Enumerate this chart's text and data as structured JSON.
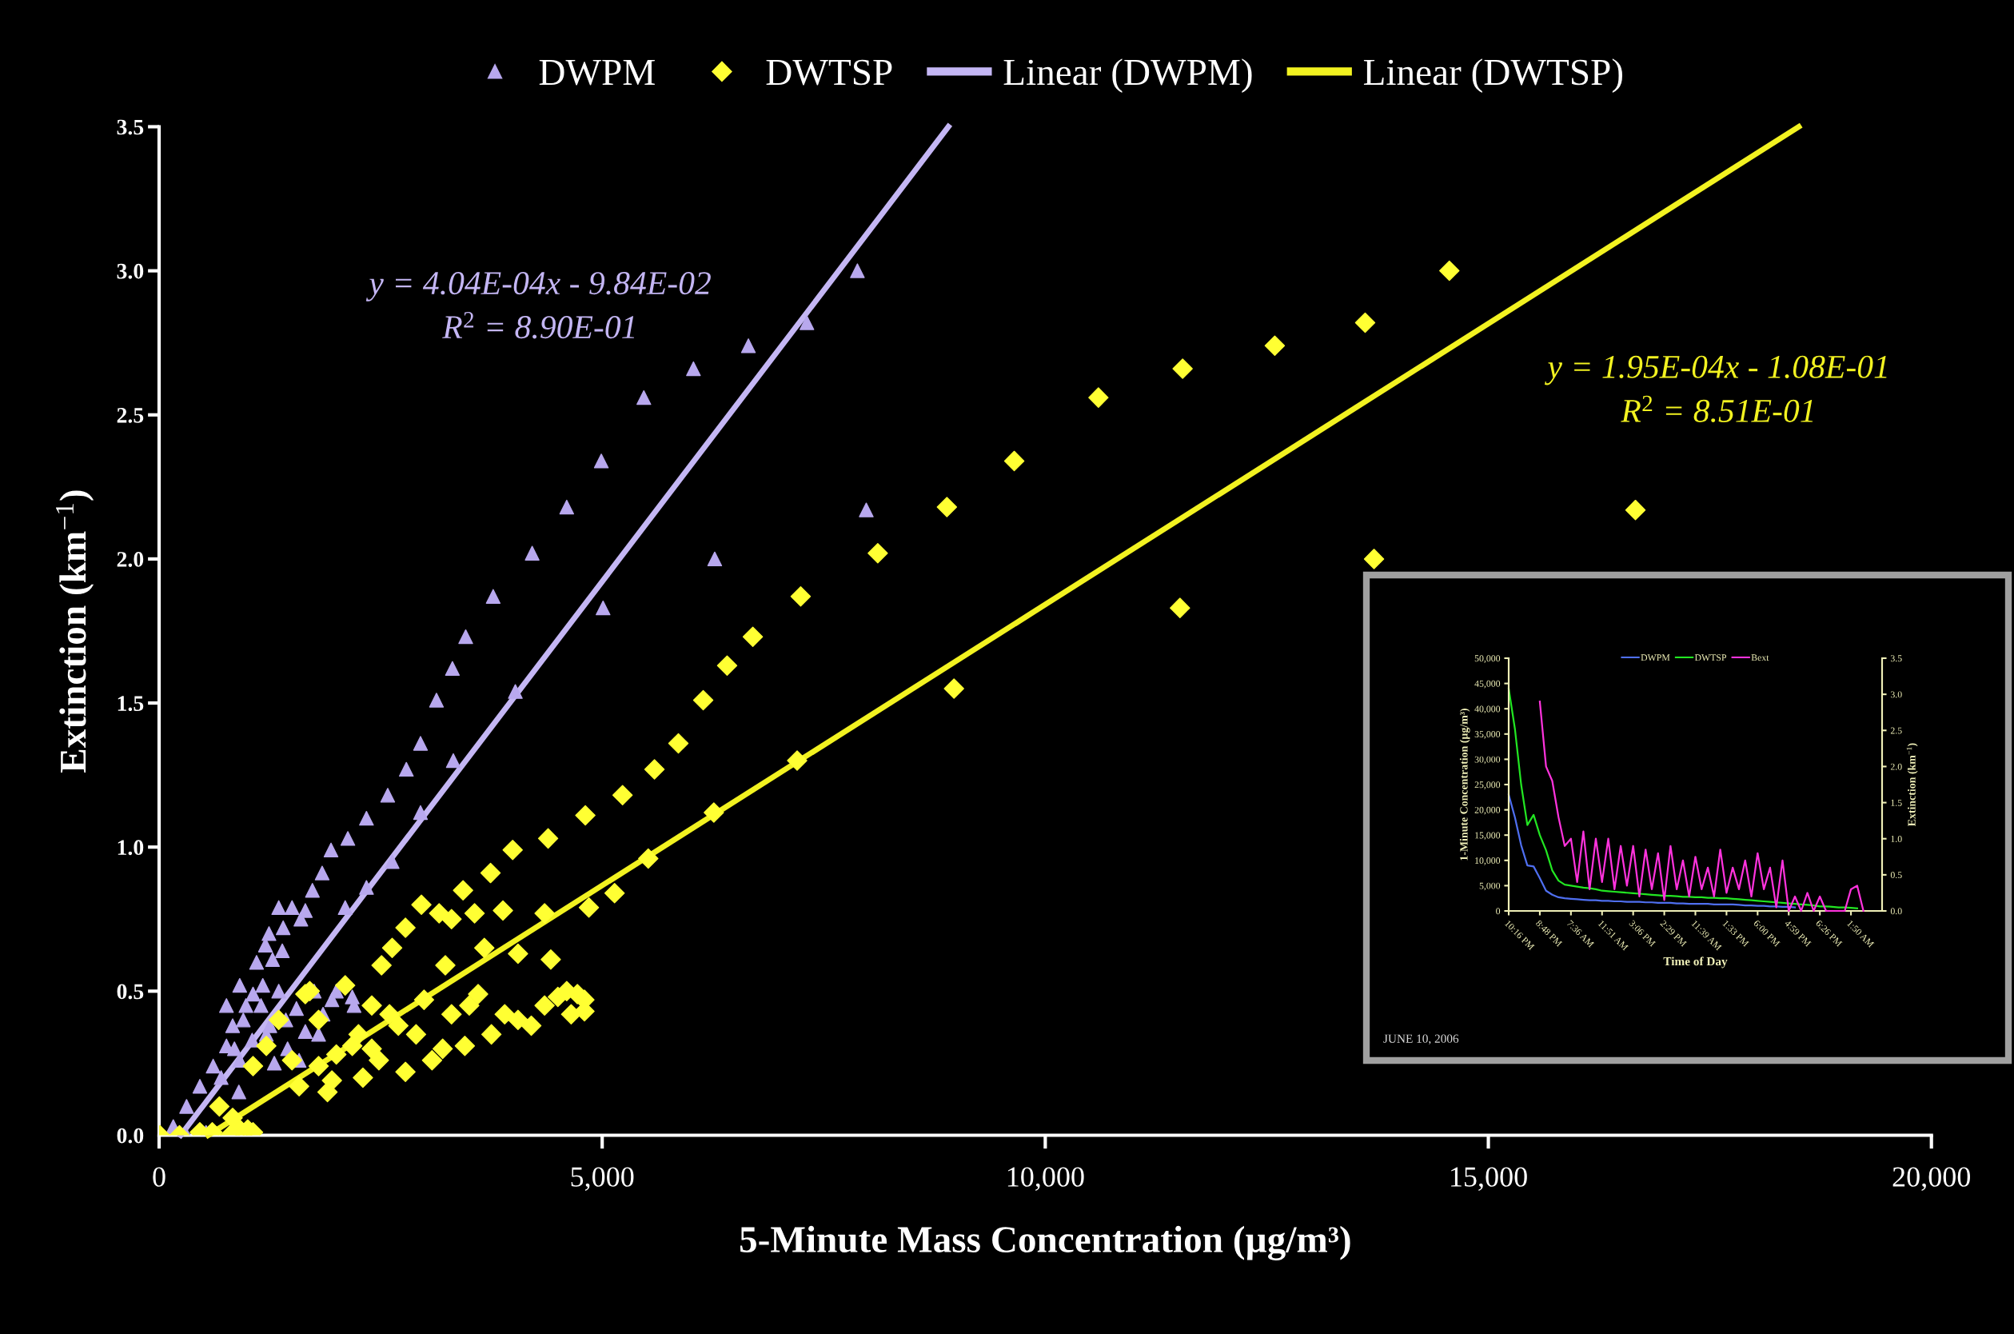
{
  "chart_data": [
    {
      "type": "scatter",
      "xlabel": "5-Minute Mass Concentration (µg/m³)",
      "ylabel": "Extinction (km$^{−1}$)",
      "xlim": [
        0,
        20000
      ],
      "xticks": [
        0,
        {
          "value": 5000,
          "label": "5,000"
        },
        {
          "value": 10000,
          "label": "10,000"
        },
        {
          "value": 15000,
          "label": "15,000"
        },
        {
          "value": 20000,
          "label": "20,000"
        }
      ],
      "ylim": [
        0,
        3.5
      ],
      "yticks": [
        {
          "value": 0,
          "label": "0.0"
        },
        {
          "value": 0.5,
          "label": "0.5"
        },
        {
          "value": 1,
          "label": "1.0"
        },
        {
          "value": 1.5,
          "label": "1.5"
        },
        {
          "value": 2,
          "label": "2.0"
        },
        {
          "value": 2.5,
          "label": "2.5"
        },
        {
          "value": 3,
          "label": "3.0"
        },
        {
          "value": 3.5,
          "label": "3.5"
        }
      ],
      "grid": false,
      "legend": "top",
      "annotations": [
        "y = 4.04E-04x - 9.84E-02\nR$^{2}$ = 8.90E-01",
        "y = 1.95E-04x - 1.08E-01\nR$^{2}$ = 8.51E-01"
      ],
      "series": [
        {
          "name": "DWPM",
          "type": "scatter",
          "marker": "triangle",
          "color": "#b8a8ee",
          "x": [
            7880,
            7310,
            6650,
            6030,
            5470,
            4990,
            4600,
            4210,
            3770,
            3460,
            3310,
            3130,
            2950,
            2790,
            2580,
            2340,
            2130,
            1940,
            1840,
            1730,
            7980,
            6270,
            5010,
            4020,
            3320,
            2950,
            2630,
            2340,
            2100,
            1350,
            1500,
            1650,
            1240,
            1390,
            1280,
            1170,
            910,
            980,
            830,
            760,
            610,
            460,
            310,
            160,
            1060,
            1430,
            1800,
            1950,
            2180,
            1210,
            910,
            1580,
            760,
            310,
            530,
            700,
            850,
            950,
            1050,
            1150,
            1250,
            1350,
            1450,
            1550,
            1650,
            1750,
            1850,
            1100,
            1200,
            1400,
            1600,
            900,
            1300,
            2000,
            2200
          ],
          "values": [
            3.0,
            2.82,
            2.74,
            2.66,
            2.56,
            2.34,
            2.18,
            2.02,
            1.87,
            1.73,
            1.62,
            1.51,
            1.36,
            1.27,
            1.18,
            1.1,
            1.03,
            0.99,
            0.91,
            0.85,
            2.17,
            2.0,
            1.83,
            1.54,
            1.3,
            1.12,
            0.95,
            0.86,
            0.79,
            0.79,
            0.79,
            0.78,
            0.7,
            0.64,
            0.61,
            0.52,
            0.52,
            0.45,
            0.38,
            0.31,
            0.24,
            0.17,
            0.1,
            0.03,
            0.49,
            0.4,
            0.35,
            0.47,
            0.48,
            0.35,
            0.26,
            0.26,
            0.45,
            0.0,
            0.01,
            0.2,
            0.3,
            0.4,
            0.33,
            0.45,
            0.38,
            0.5,
            0.3,
            0.44,
            0.36,
            0.5,
            0.42,
            0.6,
            0.66,
            0.72,
            0.75,
            0.15,
            0.25,
            0.5,
            0.45
          ]
        },
        {
          "name": "DWTSP",
          "type": "scatter",
          "marker": "diamond",
          "color": "#ffff33",
          "x": [
            14560,
            13610,
            12590,
            11550,
            10600,
            9650,
            8890,
            8110,
            16660,
            13710,
            11520,
            8970,
            7240,
            6700,
            6410,
            6140,
            5860,
            5590,
            5230,
            4810,
            4390,
            3990,
            3740,
            3430,
            7200,
            6260,
            5520,
            5140,
            4850,
            4350,
            3880,
            3560,
            3160,
            2960,
            2780,
            2630,
            2510,
            3230,
            3670,
            4050,
            4420,
            4720,
            4650,
            4350,
            4050,
            3750,
            3450,
            3080,
            2780,
            2480,
            2180,
            1800,
            1580,
            1650,
            2100,
            2400,
            2700,
            2990,
            3300,
            3600,
            1350,
            1210,
            1060,
            1500,
            1950,
            2250,
            680,
            830,
            460,
            230,
            1060,
            910,
            10,
            1700,
            1800,
            2000,
            2300,
            2600,
            2900,
            3200,
            3500,
            3900,
            4200,
            4500,
            4600,
            4800,
            4800,
            3300,
            1900,
            2400,
            600,
            800,
            1000
          ],
          "values": [
            3.0,
            2.82,
            2.74,
            2.66,
            2.56,
            2.34,
            2.18,
            2.02,
            2.17,
            2.0,
            1.83,
            1.55,
            1.87,
            1.73,
            1.63,
            1.51,
            1.36,
            1.27,
            1.18,
            1.11,
            1.03,
            0.99,
            0.91,
            0.85,
            1.3,
            1.12,
            0.96,
            0.84,
            0.79,
            0.77,
            0.78,
            0.77,
            0.77,
            0.8,
            0.72,
            0.65,
            0.59,
            0.59,
            0.65,
            0.63,
            0.61,
            0.49,
            0.42,
            0.45,
            0.4,
            0.35,
            0.31,
            0.26,
            0.22,
            0.26,
            0.31,
            0.24,
            0.17,
            0.49,
            0.52,
            0.45,
            0.38,
            0.47,
            0.42,
            0.49,
            0.4,
            0.31,
            0.24,
            0.26,
            0.19,
            0.35,
            0.1,
            0.06,
            0.01,
            0.0,
            0.01,
            0.02,
            0.0,
            0.5,
            0.4,
            0.28,
            0.2,
            0.42,
            0.35,
            0.3,
            0.45,
            0.42,
            0.38,
            0.48,
            0.5,
            0.47,
            0.43,
            0.75,
            0.15,
            0.3,
            0.01,
            0.0,
            0.02
          ]
        },
        {
          "name": "Linear (DWPM)",
          "type": "line",
          "line_style": "solid",
          "color": "#c4b6f4",
          "x": [
            244,
            8907
          ],
          "values": [
            0,
            3.5
          ]
        },
        {
          "name": "Linear (DWTSP)",
          "type": "line",
          "line_style": "solid",
          "color": "#f2f220",
          "x": [
            554,
            18503
          ],
          "values": [
            0,
            3.5
          ]
        }
      ]
    },
    {
      "type": "line",
      "xlabel": "Time of Day",
      "ylabel": "1-Minute Concentration (µg/m³)",
      "y2label": "Extinction (km$^{−1}$)",
      "categories": [
        "10:16 PM",
        null,
        null,
        null,
        null,
        "8:48 PM",
        null,
        null,
        null,
        null,
        "7:36 AM",
        null,
        null,
        null,
        null,
        "11:51 AM",
        null,
        null,
        null,
        null,
        "3:06 PM",
        null,
        null,
        null,
        null,
        "2:29 PM",
        null,
        null,
        null,
        null,
        "11:39 AM",
        null,
        null,
        null,
        null,
        "1:33 PM",
        null,
        null,
        null,
        null,
        "6:00 PM",
        null,
        null,
        null,
        null,
        "4:59 PM",
        null,
        null,
        null,
        null,
        "6:26 PM",
        null,
        null,
        null,
        null,
        "1:50 AM",
        null,
        null,
        null,
        null,
        null
      ],
      "ylim": [
        0,
        50000
      ],
      "yticks": [
        0,
        {
          "value": 5000,
          "label": "5,000"
        },
        {
          "value": 10000,
          "label": "10,000"
        },
        {
          "value": 15000,
          "label": "15,000"
        },
        {
          "value": 20000,
          "label": "20,000"
        },
        {
          "value": 25000,
          "label": "25,000"
        },
        {
          "value": 30000,
          "label": "30,000"
        },
        {
          "value": 35000,
          "label": "35,000"
        },
        {
          "value": 40000,
          "label": "40,000"
        },
        {
          "value": 45000,
          "label": "45,000"
        },
        {
          "value": 50000,
          "label": "50,000"
        }
      ],
      "y2lim": [
        0,
        3.5
      ],
      "y2ticks": [
        {
          "value": 0,
          "label": "0.0"
        },
        {
          "value": 0.5,
          "label": "0.5"
        },
        {
          "value": 1,
          "label": "1.0"
        },
        {
          "value": 1.5,
          "label": "1.5"
        },
        {
          "value": 2,
          "label": "2.0"
        },
        {
          "value": 2.5,
          "label": "2.5"
        },
        {
          "value": 3,
          "label": "3.0"
        },
        {
          "value": 3.5,
          "label": "3.5"
        }
      ],
      "grid": false,
      "legend": "top",
      "marker": "none",
      "annotations": [
        "JUNE 10, 2006"
      ],
      "series": [
        {
          "name": "DWPM",
          "color": "#4f6ff0",
          "values": [
            23000,
            18500,
            13000,
            9000,
            8800,
            6500,
            4000,
            3200,
            2700,
            2500,
            2400,
            2300,
            2200,
            2100,
            2100,
            2000,
            2000,
            1900,
            1900,
            1800,
            1800,
            1800,
            1700,
            1700,
            1600,
            1600,
            1600,
            1500,
            1500,
            1400,
            1400,
            1400,
            1400,
            1300,
            1300,
            1300,
            1300,
            1200,
            1100,
            1100,
            1000,
            1000,
            900,
            900,
            800,
            800,
            700,
            null,
            null,
            null,
            null,
            null,
            null,
            null,
            null,
            null,
            null,
            null,
            null,
            null,
            null
          ]
        },
        {
          "name": "DWTSP",
          "color": "#22e622",
          "values": [
            44000,
            36000,
            25000,
            17000,
            19000,
            15000,
            12000,
            8000,
            6000,
            5200,
            5000,
            4800,
            4600,
            4500,
            4300,
            4000,
            3900,
            3800,
            3700,
            3600,
            3500,
            3400,
            3300,
            3200,
            3100,
            3000,
            3000,
            2900,
            2800,
            2800,
            2700,
            2700,
            2600,
            2600,
            2500,
            2500,
            2400,
            2300,
            2200,
            2100,
            2000,
            1900,
            1800,
            1700,
            1600,
            1500,
            1400,
            1300,
            1200,
            1100,
            900,
            900,
            800,
            700,
            700,
            600,
            500,
            null,
            null,
            null,
            null
          ]
        },
        {
          "name": "Bext",
          "color": "#ff33dd",
          "axis": "y2",
          "values": [
            null,
            null,
            null,
            null,
            null,
            2.9,
            2.0,
            1.8,
            1.3,
            0.9,
            1.0,
            0.4,
            1.1,
            0.3,
            1.0,
            0.4,
            1.0,
            0.3,
            0.9,
            0.35,
            0.9,
            0.2,
            0.85,
            0.3,
            0.8,
            0.15,
            0.9,
            0.3,
            0.7,
            0.2,
            0.75,
            0.3,
            0.6,
            0.2,
            0.85,
            0.25,
            0.6,
            0.3,
            0.7,
            0.2,
            0.8,
            0.3,
            0.6,
            0.05,
            0.7,
            0.0,
            0.2,
            0.0,
            0.25,
            0.0,
            0.2,
            0.0,
            0.0,
            0.0,
            0.0,
            0.3,
            0.35,
            0.0,
            null,
            null,
            null
          ]
        }
      ]
    }
  ]
}
